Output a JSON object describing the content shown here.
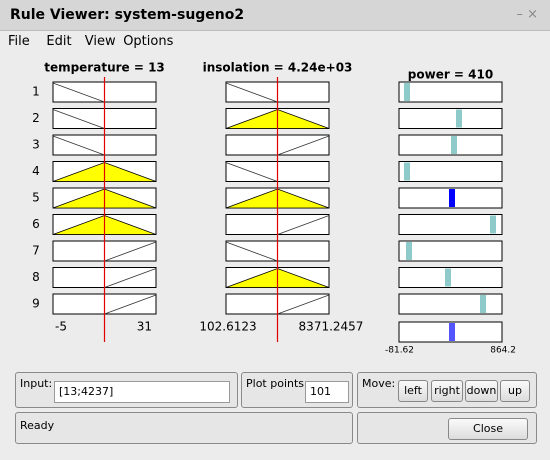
{
  "window": {
    "title": "Rule Viewer: system-sugeno2",
    "controls": "– ×"
  },
  "menu": [
    "File",
    "Edit",
    "View",
    "Options"
  ],
  "plots": {
    "inputs": [
      {
        "title": "temperature = 13",
        "range_labels": [
          "-5",
          "31"
        ]
      },
      {
        "title": "insolation = 4.24e+03",
        "range_labels": [
          "102.6123",
          "8371.2457"
        ]
      }
    ],
    "output": {
      "title": "power = 410",
      "range_labels": [
        "-81.62",
        "864.2"
      ]
    },
    "rule_numbers": [
      1,
      2,
      3,
      4,
      5,
      6,
      7,
      8,
      9
    ]
  },
  "controls": {
    "input_label": "Input:",
    "input_value": "[13;4237]",
    "plot_points_label": "Plot points:",
    "plot_points_value": "101",
    "move_label": "Move:",
    "move_buttons": [
      "left",
      "right",
      "down",
      "up"
    ]
  },
  "status": {
    "text": "Ready",
    "close_button": "Close"
  }
}
